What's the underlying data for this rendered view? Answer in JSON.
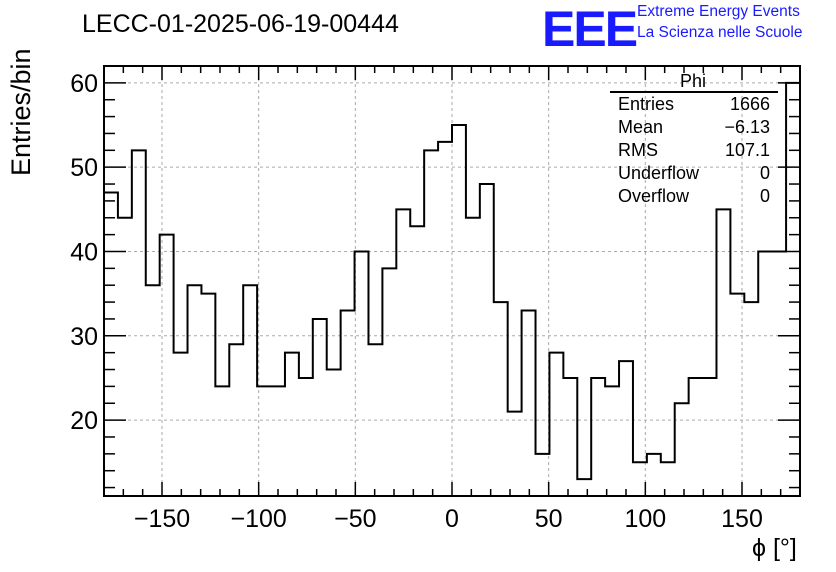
{
  "title": "LECC-01-2025-06-19-00444",
  "logo": {
    "mark": "EEE",
    "line1": "Extreme Energy Events",
    "line2": "La Scienza nelle Scuole",
    "color": "#1a1aff"
  },
  "stats_box": {
    "header": "Phi",
    "rows": [
      {
        "label": "Entries",
        "value": "1666"
      },
      {
        "label": "Mean",
        "value": "−6.13"
      },
      {
        "label": "RMS",
        "value": "107.1"
      },
      {
        "label": "Underflow",
        "value": "0"
      },
      {
        "label": "Overflow",
        "value": "0"
      }
    ]
  },
  "chart_data": {
    "type": "bar",
    "histogram": "step",
    "title": "LECC-01-2025-06-19-00444",
    "xlabel": "ϕ [°]",
    "ylabel": "Entries/bin",
    "xlim": [
      -180,
      180
    ],
    "ylim": [
      11,
      62
    ],
    "xticks": [
      -150,
      -100,
      -50,
      0,
      50,
      100,
      150
    ],
    "yticks": [
      20,
      30,
      40,
      50,
      60
    ],
    "grid": true,
    "bin_width": 7.2,
    "bin_edges_start": -180,
    "values": [
      47,
      44,
      52,
      36,
      42,
      28,
      36,
      35,
      24,
      29,
      36,
      24,
      24,
      28,
      25,
      32,
      26,
      33,
      40,
      29,
      38,
      45,
      43,
      52,
      53,
      55,
      44,
      48,
      34,
      21,
      33,
      16,
      28,
      25,
      13,
      25,
      24,
      27,
      15,
      16,
      15,
      22,
      25,
      25,
      45,
      35,
      34,
      40,
      40,
      60
    ],
    "line_color": "#000000"
  }
}
